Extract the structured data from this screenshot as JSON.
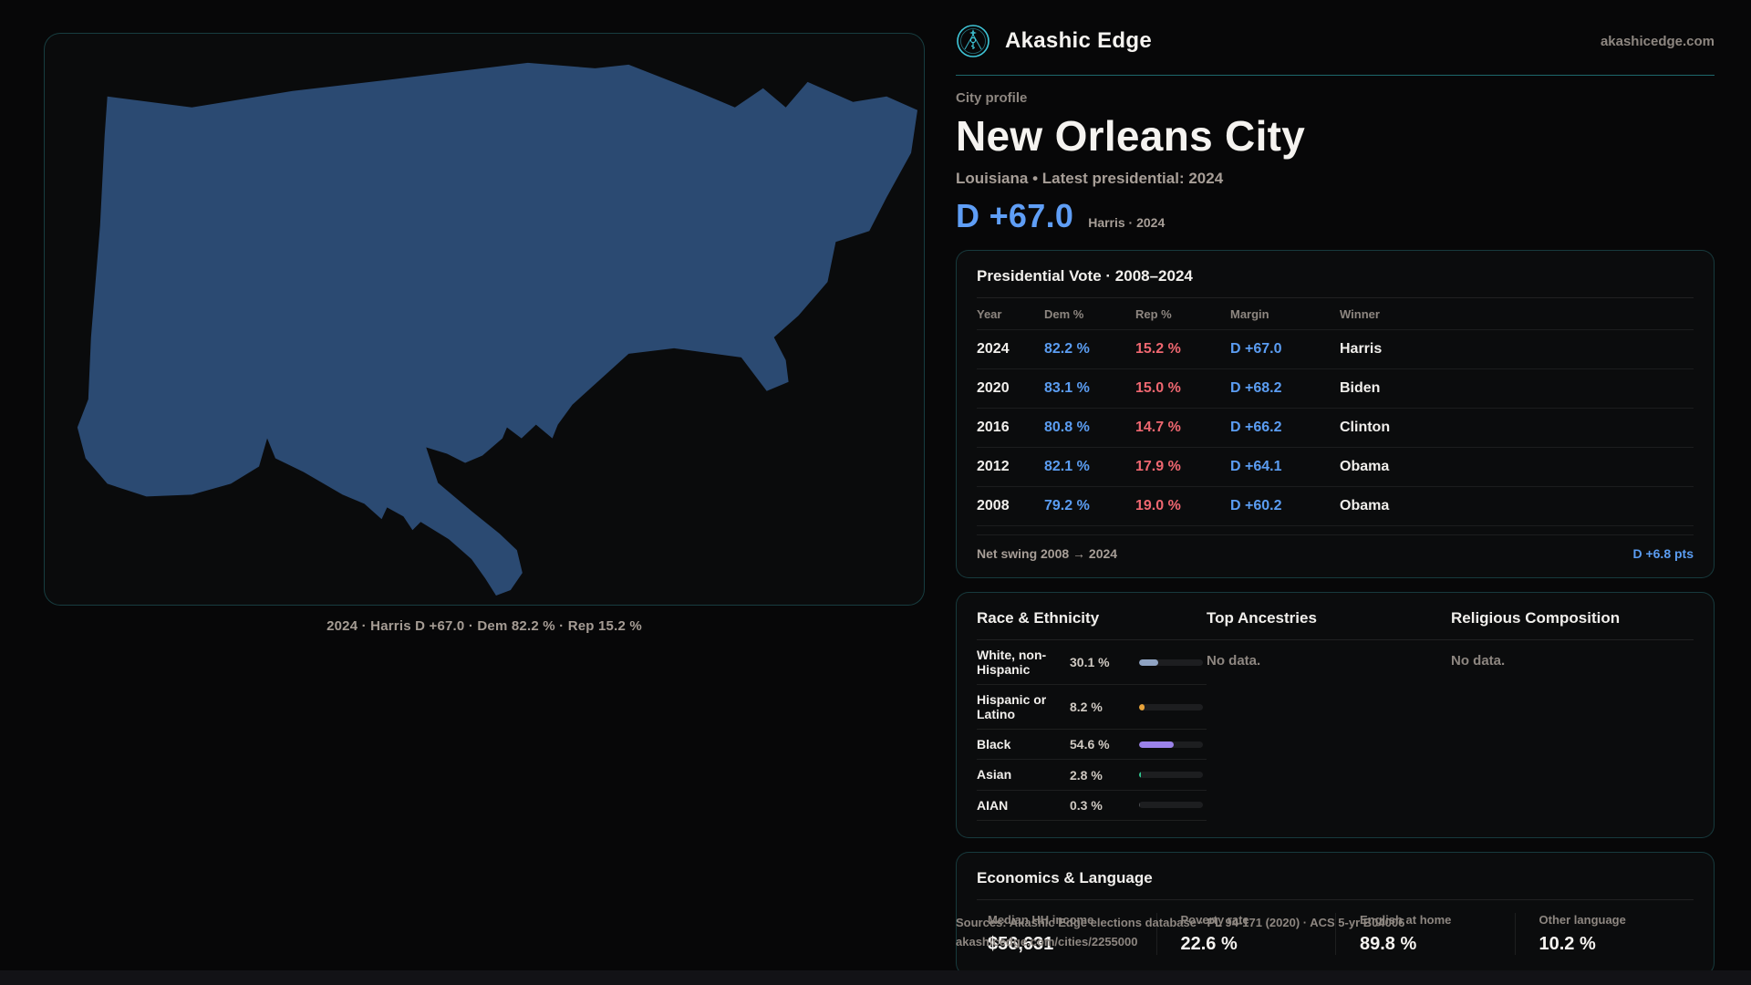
{
  "colors": {
    "accent_teal": "#3fc6d8",
    "dem_blue": "#5b9df2",
    "rep_red": "#ef6770",
    "map_fill": "#2b4a72",
    "card_border": "rgba(56,178,186,0.28)"
  },
  "header": {
    "brand": "Akashic Edge",
    "site": "akashicedge.com"
  },
  "profile": {
    "eyebrow": "City profile",
    "title": "New Orleans City",
    "subtitle": "Louisiana • Latest presidential: 2024",
    "headline_margin": "D +67.0",
    "headline_note": "Harris · 2024"
  },
  "map": {
    "caption": "2024 · Harris D +67.0 · Dem 82.2 % · Rep 15.2 %"
  },
  "vote_table": {
    "title": "Presidential Vote · 2008–2024",
    "columns": [
      "Year",
      "Dem %",
      "Rep %",
      "Margin",
      "Winner"
    ],
    "rows": [
      {
        "year": "2024",
        "dem": "82.2 %",
        "rep": "15.2 %",
        "margin": "D +67.0",
        "winner": "Harris"
      },
      {
        "year": "2020",
        "dem": "83.1 %",
        "rep": "15.0 %",
        "margin": "D +68.2",
        "winner": "Biden"
      },
      {
        "year": "2016",
        "dem": "80.8 %",
        "rep": "14.7 %",
        "margin": "D +66.2",
        "winner": "Clinton"
      },
      {
        "year": "2012",
        "dem": "82.1 %",
        "rep": "17.9 %",
        "margin": "D +64.1",
        "winner": "Obama"
      },
      {
        "year": "2008",
        "dem": "79.2 %",
        "rep": "19.0 %",
        "margin": "D +60.2",
        "winner": "Obama"
      }
    ],
    "footer_label": "Net swing 2008 → 2024",
    "footer_value": "D +6.8 pts"
  },
  "demographics": {
    "race": {
      "title": "Race & Ethnicity",
      "rows": [
        {
          "label": "White, non-Hispanic",
          "value": "30.1 %",
          "pct": 30.1,
          "color": "#8fa3c2"
        },
        {
          "label": "Hispanic or Latino",
          "value": "8.2 %",
          "pct": 8.2,
          "color": "#e8a33a"
        },
        {
          "label": "Black",
          "value": "54.6 %",
          "pct": 54.6,
          "color": "#9b82ea"
        },
        {
          "label": "Asian",
          "value": "2.8 %",
          "pct": 2.8,
          "color": "#2fc78f"
        },
        {
          "label": "AIAN",
          "value": "0.3 %",
          "pct": 0.3,
          "color": "#4a4c50"
        }
      ]
    },
    "ancestries": {
      "title": "Top Ancestries",
      "empty": "No data."
    },
    "religion": {
      "title": "Religious Composition",
      "empty": "No data."
    }
  },
  "economics": {
    "title": "Economics & Language",
    "stats": [
      {
        "label": "Median HH income",
        "value": "$56,631"
      },
      {
        "label": "Poverty rate",
        "value": "22.6 %"
      },
      {
        "label": "English at home",
        "value": "89.8 %"
      },
      {
        "label": "Other language",
        "value": "10.2 %"
      }
    ]
  },
  "footer": {
    "line1": "Sources: Akashic Edge elections database · PL 94-171 (2020) · ACS 5-yr B04006",
    "line2": "akashicedge.com/cities/2255000"
  }
}
